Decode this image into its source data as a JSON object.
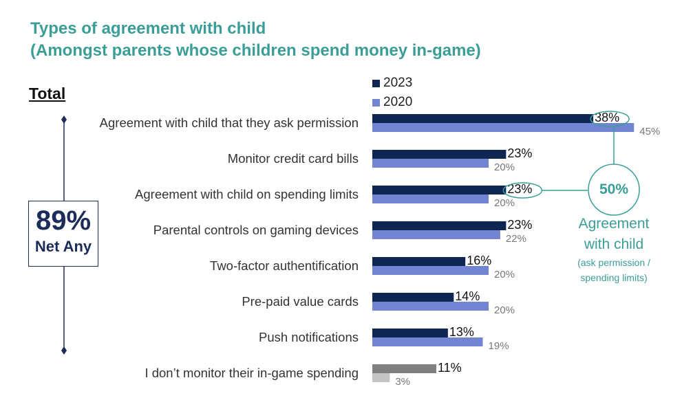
{
  "title_line1": "Types of agreement with child",
  "title_line2": "(Amongst parents whose children spend money in-game)",
  "section_label": "Total",
  "net": {
    "percent": "89%",
    "label": "Net Any"
  },
  "callout": {
    "percent": "50%",
    "line1": "Agreement",
    "line2": "with child",
    "line3": "(ask permission /",
    "line4": "spending limits)"
  },
  "colors": {
    "s2023": "#0f2653",
    "s2020": "#7384d2",
    "none2023": "#7f7f7f",
    "none2020": "#c4c4c4",
    "accent": "#3a9e97",
    "bracket": "#1c2d5a"
  },
  "chart_data": {
    "type": "bar",
    "orientation": "horizontal",
    "categories": [
      "Agreement with child that they ask permission",
      "Monitor credit card bills",
      "Agreement with child on spending limits",
      "Parental controls on gaming devices",
      "Two-factor authentification",
      "Pre-paid value cards",
      "Push notifications",
      "I don’t monitor their in-game spending"
    ],
    "series": [
      {
        "name": "2023",
        "values": [
          38,
          23,
          23,
          23,
          16,
          14,
          13,
          11
        ],
        "labels": [
          "38%",
          "23%",
          "23%",
          "23%",
          "16%",
          "14%",
          "13%",
          "11%"
        ]
      },
      {
        "name": "2020",
        "values": [
          45,
          20,
          20,
          22,
          20,
          20,
          19,
          3
        ],
        "labels": [
          "45%",
          "20%",
          "20%",
          "22%",
          "20%",
          "20%",
          "19%",
          "3%"
        ]
      }
    ],
    "highlighted_labels": [
      "38%",
      "23%"
    ]
  }
}
